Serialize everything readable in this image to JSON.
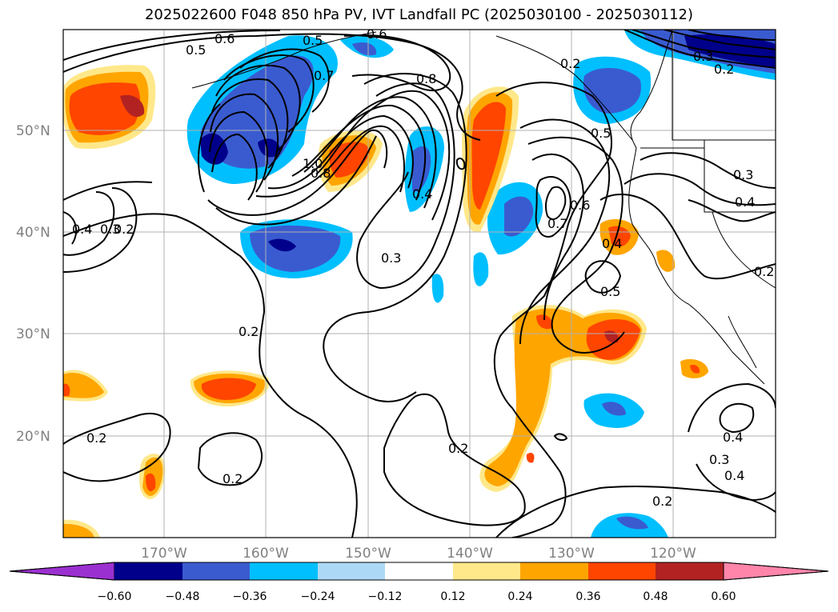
{
  "title": "2025022600 F048 850 hPa PV, IVT Landfall PC (2025030100 - 2025030112)",
  "lat_labels": [
    "50°N",
    "40°N",
    "30°N",
    "20°N"
  ],
  "lon_labels": [
    "170°W",
    "160°W",
    "150°W",
    "140°W",
    "130°W",
    "120°W"
  ],
  "colorbar": {
    "ticks": [
      "−0.60",
      "−0.48",
      "−0.36",
      "−0.24",
      "−0.12",
      "0.12",
      "0.24",
      "0.36",
      "0.48",
      "0.60"
    ],
    "colors": [
      "#9b30d0",
      "#00008b",
      "#3a5bd0",
      "#00bfff",
      "#add8f5",
      "#ffffff",
      "#ffe88a",
      "#ffa500",
      "#ff4500",
      "#b22222",
      "#ff85aa"
    ]
  },
  "contour_labels": [
    "0.6",
    "0.5",
    "0.5",
    "0.6",
    "0.7",
    "0.8",
    "1.0",
    "0.8",
    "0.4",
    "0.3",
    "0.2",
    "0.3",
    "0.4",
    "0.2",
    "0.2",
    "0.2",
    "0.2",
    "0.2",
    "0.3",
    "0.7",
    "0.6",
    "0.5",
    "0.4",
    "0.5",
    "0.2",
    "0.3",
    "0.4",
    "0.2",
    "0.4",
    "0.3",
    "0.4",
    "0.2"
  ]
}
